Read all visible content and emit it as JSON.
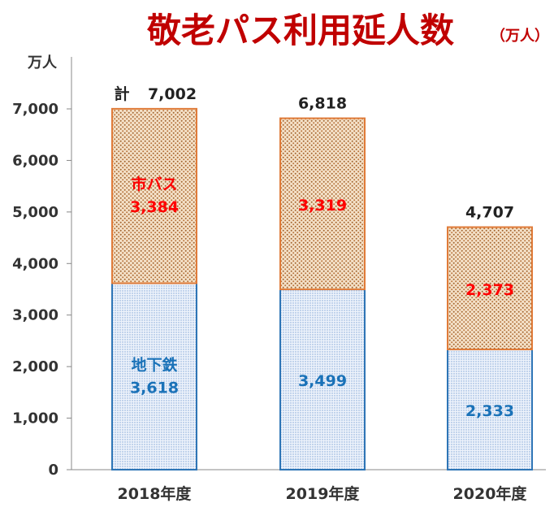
{
  "chart_data": {
    "type": "bar",
    "stacked": true,
    "title": "敬老パス利用延人数",
    "unit_label": "（万人）",
    "ylabel": "万人",
    "categories": [
      "2018年度",
      "2019年度",
      "2020年度"
    ],
    "ylim": [
      0,
      7000
    ],
    "yticks": [
      "0",
      "1,000",
      "2,000",
      "3,000",
      "4,000",
      "5,000",
      "6,000",
      "7,000"
    ],
    "ytick_values": [
      0,
      1000,
      2000,
      3000,
      4000,
      5000,
      6000,
      7000
    ],
    "total_prefix": "計",
    "totals": [
      7002,
      6818,
      4707
    ],
    "total_labels": [
      "7,002",
      "6,818",
      "4,707"
    ],
    "series": [
      {
        "name": "地下鉄",
        "values": [
          3618,
          3499,
          2333
        ],
        "labels": [
          "3,618",
          "3,499",
          "2,333"
        ],
        "color": "#2e75b6",
        "fill": "#dfe9f7",
        "label_color": "#1a72b8"
      },
      {
        "name": "市バス",
        "values": [
          3384,
          3319,
          2373
        ],
        "labels": [
          "3,384",
          "3,319",
          "2,373"
        ],
        "color": "#e07b39",
        "fill": "#f3dcc0",
        "label_color": "#ff0000"
      }
    ],
    "title_color": "#c00000",
    "grid": false,
    "legend": "none"
  }
}
